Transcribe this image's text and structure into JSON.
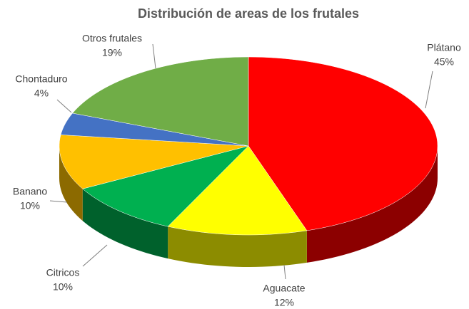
{
  "chart_data": {
    "type": "pie",
    "title": "Distribución de areas de los frutales",
    "categories": [
      "Plátano",
      "Aguacate",
      "Citricos",
      "Banano",
      "Chontaduro",
      "Otros frutales"
    ],
    "values": [
      45,
      12,
      10,
      10,
      4,
      19
    ],
    "value_labels": [
      "45%",
      "12%",
      "10%",
      "10%",
      "4%",
      "19%"
    ],
    "colors": [
      "#ff0000",
      "#ffff00",
      "#00b050",
      "#ffc000",
      "#4472c4",
      "#70ad47"
    ]
  }
}
